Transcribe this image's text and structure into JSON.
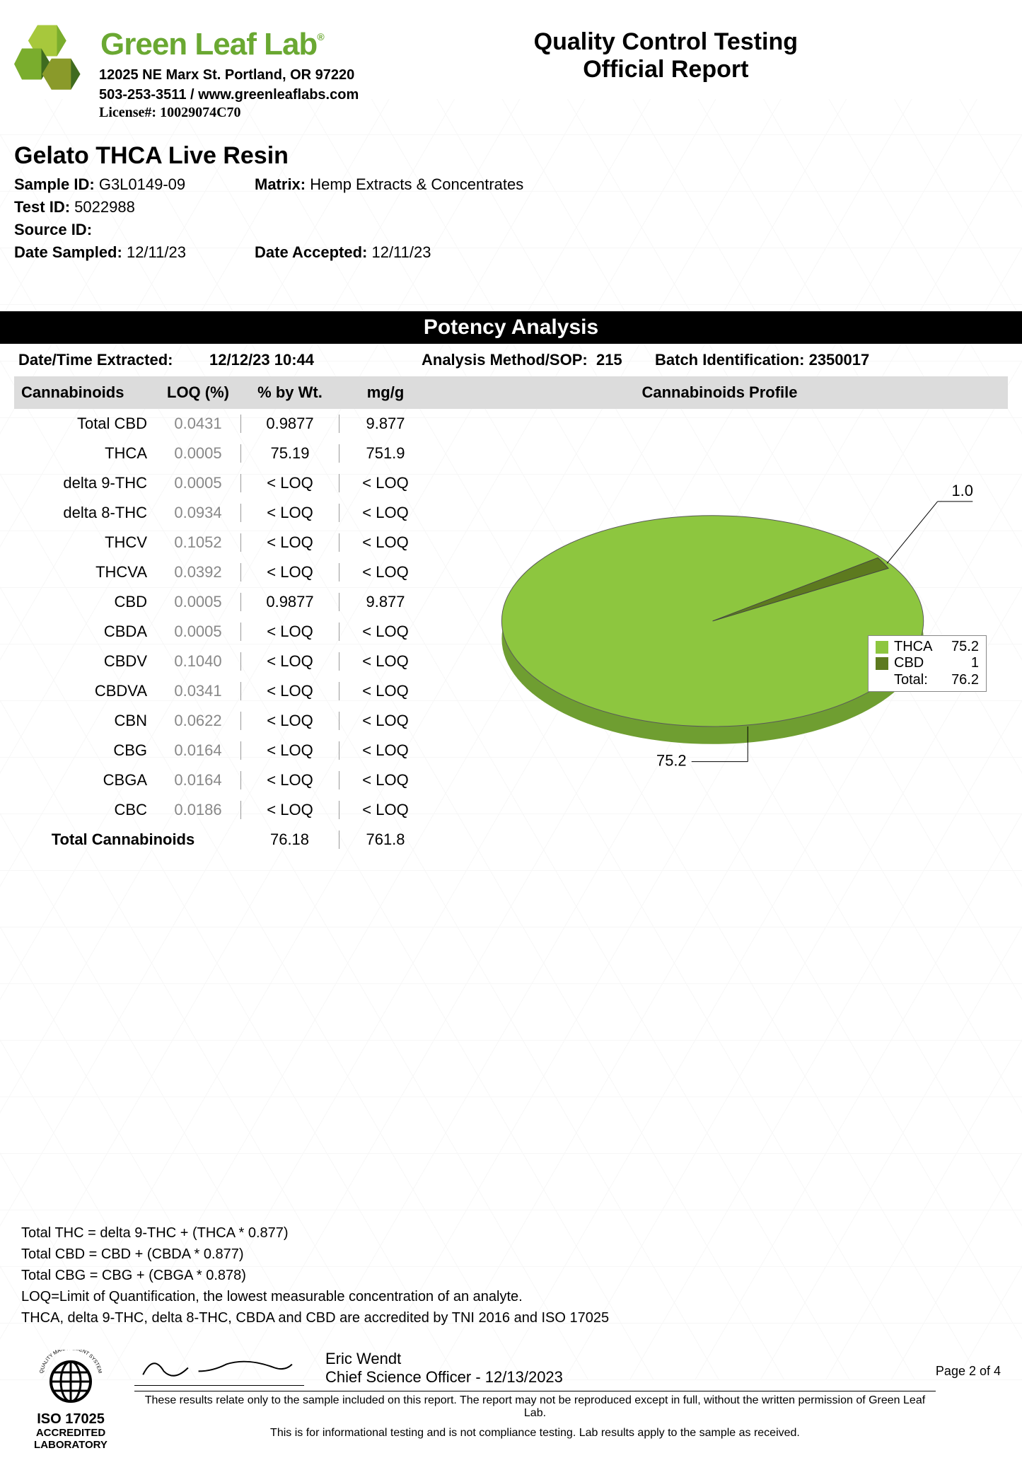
{
  "header": {
    "brand_name": "GreenLeafLab",
    "brand_name_display": "Green Leaf Lab",
    "address": "12025 NE Marx St. Portland, OR 97220",
    "phone_web": "503-253-3511 / www.greenleaflabs.com",
    "license_label": "License#:",
    "license_value": "10029074C70",
    "report_title_l1": "Quality Control Testing",
    "report_title_l2": "Official Report",
    "logo_colors": {
      "light": "#a7c83c",
      "med": "#7aad2d",
      "dark": "#3f6b1f",
      "olive": "#8a9a2a"
    }
  },
  "sample": {
    "title": "Gelato THCA Live Resin",
    "sample_id_label": "Sample ID:",
    "sample_id": "G3L0149-09",
    "matrix_label": "Matrix:",
    "matrix": "Hemp Extracts & Concentrates",
    "test_id_label": "Test ID:",
    "test_id": "5022988",
    "source_id_label": "Source ID:",
    "source_id": "",
    "date_sampled_label": "Date Sampled:",
    "date_sampled": "12/11/23",
    "date_accepted_label": "Date Accepted:",
    "date_accepted": "12/11/23"
  },
  "potency": {
    "section_title": "Potency Analysis",
    "dt_extracted_label": "Date/Time Extracted:",
    "dt_extracted": "12/12/23  10:44",
    "method_label": "Analysis Method/SOP:",
    "method": "215",
    "batch_label": "Batch Identification:",
    "batch": "2350017",
    "columns": [
      "Cannabinoids",
      "LOQ (%)",
      "% by Wt.",
      "mg/g"
    ],
    "rows": [
      {
        "name": "Total CBD",
        "loq": "0.0431",
        "pct": "0.9877",
        "mgg": "9.877"
      },
      {
        "name": "THCA",
        "loq": "0.0005",
        "pct": "75.19",
        "mgg": "751.9"
      },
      {
        "name": "delta 9-THC",
        "loq": "0.0005",
        "pct": "< LOQ",
        "mgg": "< LOQ"
      },
      {
        "name": "delta 8-THC",
        "loq": "0.0934",
        "pct": "< LOQ",
        "mgg": "< LOQ"
      },
      {
        "name": "THCV",
        "loq": "0.1052",
        "pct": "< LOQ",
        "mgg": "< LOQ"
      },
      {
        "name": "THCVA",
        "loq": "0.0392",
        "pct": "< LOQ",
        "mgg": "< LOQ"
      },
      {
        "name": "CBD",
        "loq": "0.0005",
        "pct": "0.9877",
        "mgg": "9.877"
      },
      {
        "name": "CBDA",
        "loq": "0.0005",
        "pct": "< LOQ",
        "mgg": "< LOQ"
      },
      {
        "name": "CBDV",
        "loq": "0.1040",
        "pct": "< LOQ",
        "mgg": "< LOQ"
      },
      {
        "name": "CBDVA",
        "loq": "0.0341",
        "pct": "< LOQ",
        "mgg": "< LOQ"
      },
      {
        "name": "CBN",
        "loq": "0.0622",
        "pct": "< LOQ",
        "mgg": "< LOQ"
      },
      {
        "name": "CBG",
        "loq": "0.0164",
        "pct": "< LOQ",
        "mgg": "< LOQ"
      },
      {
        "name": "CBGA",
        "loq": "0.0164",
        "pct": "< LOQ",
        "mgg": "< LOQ"
      },
      {
        "name": "CBC",
        "loq": "0.0186",
        "pct": "< LOQ",
        "mgg": "< LOQ"
      }
    ],
    "total_label": "Total Cannabinoids",
    "total_pct": "76.18",
    "total_mgg": "761.8"
  },
  "chart": {
    "title": "Cannabinoids Profile",
    "type": "pie-3d",
    "slices": [
      {
        "name": "THCA",
        "value": 75.2,
        "color": "#8dc63f"
      },
      {
        "name": "CBD",
        "value": 1.0,
        "color": "#5d7a1f"
      }
    ],
    "total_label": "Total:",
    "total_value": "76.2",
    "side_color": "#6f9e31",
    "edge_color": "#5a5a5a",
    "callout_thca": "75.2",
    "callout_cbd": "1.0",
    "background_color": "#ffffff",
    "label_fontsize": 20,
    "tilt_deg": 60,
    "legend_border": "#888888"
  },
  "notes": {
    "l1": "Total THC =  delta 9-THC + (THCA * 0.877)",
    "l2": "Total CBD =  CBD + (CBDA * 0.877)",
    "l3": "Total CBG = CBG + (CBGA * 0.878)",
    "l4": "LOQ=Limit of Quantification, the lowest measurable concentration of an analyte.",
    "l5": "THCA, delta 9-THC, delta 8-THC, CBDA and CBD are accredited by TNI 2016 and ISO 17025"
  },
  "footer": {
    "iso_ring": "QUALITY MANAGEMENT SYSTEM",
    "iso_title": "ISO 17025",
    "iso_sub1": "ACCREDITED",
    "iso_sub2": "LABORATORY",
    "signer_name": "Eric Wendt",
    "signer_title": "Chief Science Officer - 12/13/2023",
    "page": "Page 2 of 4",
    "fine1": "These results relate only to the sample included on this report. The report may not be reproduced except in full, without the written permission of Green Leaf Lab.",
    "fine2": "This is for informational testing and is not compliance testing. Lab results apply to the sample as received."
  }
}
